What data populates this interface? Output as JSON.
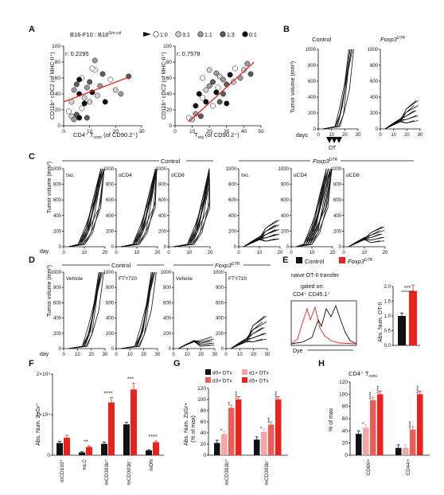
{
  "panel_letters": [
    "A",
    "B",
    "C",
    "D",
    "E",
    "F",
    "G",
    "H"
  ],
  "A": {
    "legend_prefix": "B16-F10 : B16",
    "legend_sup": "Gm-csf",
    "legend_items": [
      {
        "label": "1:0",
        "color": "#ffffff"
      },
      {
        "label": "3:1",
        "color": "#d0d0d0"
      },
      {
        "label": "1:1",
        "color": "#9a9a9a"
      },
      {
        "label": "1:3",
        "color": "#5c5c5c"
      },
      {
        "label": "0:1",
        "color": "#111111"
      }
    ],
    "ylabel": "CD11b⁺ cDC2 (of MHC-II⁺)",
    "plot1": {
      "r": "r: 0.2295",
      "xlabel": "CD4⁺ T",
      "xlabel_sub": "conv",
      "xlabel_tail": " (of CD90.2⁺)",
      "xticks": [
        "0",
        "10",
        "20",
        "30"
      ],
      "yticks": [
        "0",
        "20",
        "40",
        "60",
        "80",
        "100"
      ]
    },
    "plot2": {
      "r": "r: 0.7578",
      "xlabel": "T",
      "xlabel_sub": "reg",
      "xlabel_tail": " (of CD90.2⁺)",
      "xticks": [
        "0",
        "10",
        "20",
        "30",
        "40",
        "50"
      ],
      "yticks": [
        "0",
        "20",
        "40",
        "60",
        "80",
        "100"
      ]
    }
  },
  "B": {
    "control": "Control",
    "foxp3": "Foxp3",
    "foxp3_sup": "DTR",
    "ylabel": "Tumor volume (mm³)",
    "yticks": [
      "0",
      "200",
      "400",
      "600",
      "800",
      "1000"
    ],
    "xticks": [
      "0",
      "10",
      "20",
      "30"
    ],
    "days": "days",
    "dt": "DT"
  },
  "C": {
    "control": "Control",
    "foxp3": "Foxp3",
    "foxp3_sup": "DTR",
    "ylabel": "Tumor volume (mm³)",
    "yticks": [
      "0",
      "200",
      "400",
      "600",
      "800",
      "1000"
    ],
    "xticks": [
      "0",
      "10",
      "20"
    ],
    "day": "day",
    "sub": [
      "Iso.",
      "αCD4",
      "αCD8",
      "Iso.",
      "αCD4",
      "αCD8"
    ]
  },
  "D": {
    "control": "Control",
    "foxp3": "Foxp3",
    "foxp3_sup": "DTR",
    "ylabel": "Tumor volume (mm³)",
    "yticks": [
      "0",
      "200",
      "400",
      "600",
      "800",
      "1000"
    ],
    "xticks": [
      "0",
      "10",
      "20",
      "30"
    ],
    "day": "day",
    "sub": [
      "Vehicle",
      "FTY720",
      "Vehicle",
      "FTY720"
    ]
  },
  "E": {
    "legend": [
      {
        "label": "Control",
        "color": "#111111"
      },
      {
        "label": "Foxp3",
        "sup": "DTR",
        "color": "#e8231d"
      }
    ],
    "line1": "naive OT-II transfer",
    "line2": "gated on:",
    "line3": "CD4⁺ CD45.1⁺",
    "xlabel": "Dye",
    "ylabel": "Abs. Num. OT-II",
    "stars": "***",
    "yticks": [
      "0.0",
      "0.5",
      "1.0",
      "1.5",
      "2.0"
    ]
  },
  "F": {
    "ylabel": "Abs. Num. ZsGr⁺",
    "ytick_top": "2×10⁴",
    "ytick_mid": "1×10⁴",
    "ytick_zero": "0",
    "categories": [
      "mCD103⁺",
      "mLC",
      "mCD301b⁺",
      "mCD301b⁻",
      "mDN"
    ],
    "stars": [
      "",
      "**",
      "****",
      "***",
      "****"
    ]
  },
  "G": {
    "legend": [
      {
        "label": "d0+ DTx",
        "color": "#111111"
      },
      {
        "label": "d1+ DTx",
        "color": "#f4a6a6"
      },
      {
        "label": "d3+ DTx",
        "color": "#ee5b55"
      },
      {
        "label": "d5+ DTx",
        "color": "#e8231d"
      }
    ],
    "ylabel1": "Abs. Num. ZsGr+",
    "ylabel2": "(% of max)",
    "yticks": [
      "0",
      "20",
      "40",
      "60",
      "80",
      "100",
      "120"
    ],
    "categories": [
      "mCD301b⁺",
      "mCD301b⁻"
    ],
    "stars": [
      [
        "",
        "*",
        "**",
        "****"
      ],
      [
        "",
        "*",
        "***",
        "****"
      ]
    ]
  },
  "H": {
    "title": "CD4⁺ T",
    "title_sub": "conv",
    "ylabel": "% of max",
    "yticks": [
      "0",
      "20",
      "40",
      "60",
      "80",
      "100",
      "120"
    ],
    "categories": [
      "CD69+",
      "CD44+"
    ],
    "stars": [
      [
        "",
        "*",
        "****",
        "****"
      ],
      [
        "",
        "",
        "****",
        "****"
      ]
    ]
  },
  "chart_data": [
    {
      "panel": "A-left",
      "type": "scatter",
      "xlim": [
        0,
        30
      ],
      "ylim": [
        0,
        100
      ],
      "points": [
        [
          2,
          18
        ],
        [
          3,
          12
        ],
        [
          4,
          8
        ],
        [
          5,
          14
        ],
        [
          6,
          10
        ],
        [
          7,
          22
        ],
        [
          3,
          30
        ],
        [
          4,
          45
        ],
        [
          5,
          52
        ],
        [
          6,
          40
        ],
        [
          7,
          60
        ],
        [
          8,
          35
        ],
        [
          9,
          48
        ],
        [
          10,
          55
        ],
        [
          11,
          42
        ],
        [
          12,
          70
        ],
        [
          13,
          38
        ],
        [
          14,
          50
        ],
        [
          15,
          65
        ],
        [
          16,
          30
        ],
        [
          18,
          58
        ],
        [
          20,
          45
        ],
        [
          22,
          40
        ],
        [
          25,
          62
        ],
        [
          8,
          28
        ],
        [
          11,
          72
        ],
        [
          10,
          30
        ],
        [
          12,
          82
        ],
        [
          9,
          10
        ],
        [
          6,
          58
        ]
      ],
      "fit": [
        [
          0,
          30
        ],
        [
          25,
          61
        ]
      ]
    },
    {
      "panel": "A-right",
      "type": "scatter",
      "xlim": [
        0,
        50
      ],
      "ylim": [
        0,
        100
      ],
      "points": [
        [
          8,
          10
        ],
        [
          10,
          8
        ],
        [
          12,
          15
        ],
        [
          15,
          12
        ],
        [
          14,
          40
        ],
        [
          16,
          35
        ],
        [
          18,
          45
        ],
        [
          20,
          50
        ],
        [
          22,
          55
        ],
        [
          24,
          42
        ],
        [
          25,
          48
        ],
        [
          26,
          62
        ],
        [
          28,
          58
        ],
        [
          30,
          52
        ],
        [
          32,
          64
        ],
        [
          35,
          72
        ],
        [
          40,
          70
        ],
        [
          42,
          78
        ],
        [
          44,
          65
        ],
        [
          18,
          30
        ],
        [
          22,
          25
        ],
        [
          20,
          70
        ],
        [
          24,
          66
        ],
        [
          28,
          40
        ],
        [
          30,
          28
        ],
        [
          16,
          60
        ],
        [
          34,
          55
        ],
        [
          38,
          60
        ],
        [
          26,
          30
        ],
        [
          12,
          25
        ]
      ],
      "fit": [
        [
          8,
          5
        ],
        [
          46,
          80
        ]
      ]
    },
    {
      "panel": "E-bar",
      "type": "bar",
      "categories": [
        "Control",
        "Foxp3 DTR"
      ],
      "values": [
        1.0,
        1.85
      ],
      "errors": [
        0.1,
        0.2
      ],
      "ylim": [
        0,
        2.0
      ]
    },
    {
      "panel": "F",
      "type": "bar",
      "categories": [
        "mCD103⁺",
        "mLC",
        "mCD301b⁺",
        "mCD301b⁻",
        "mDN"
      ],
      "series": [
        {
          "name": "Control",
          "values": [
            3000,
            700,
            2800,
            7600,
            1200
          ],
          "errors": [
            400,
            150,
            400,
            500,
            150
          ]
        },
        {
          "name": "Foxp3 DTR",
          "values": [
            4300,
            2000,
            13000,
            16200,
            3200
          ],
          "errors": [
            600,
            300,
            1200,
            1500,
            300
          ]
        }
      ],
      "ylim": [
        0,
        20000
      ]
    },
    {
      "panel": "G",
      "type": "bar",
      "categories": [
        "mCD301b⁺",
        "mCD301b⁻"
      ],
      "series": [
        {
          "name": "d0+ DTx",
          "values": [
            22,
            28
          ]
        },
        {
          "name": "d1+ DTx",
          "values": [
            38,
            42
          ]
        },
        {
          "name": "d3+ DTx",
          "values": [
            85,
            55
          ]
        },
        {
          "name": "d5+ DTx",
          "values": [
            100,
            100
          ]
        }
      ],
      "ylim": [
        0,
        120
      ]
    },
    {
      "panel": "H",
      "type": "bar",
      "categories": [
        "CD69+",
        "CD44+"
      ],
      "series": [
        {
          "name": "d0+ DTx",
          "values": [
            35,
            12
          ]
        },
        {
          "name": "d1+ DTx",
          "values": [
            45,
            12
          ]
        },
        {
          "name": "d3+ DTx",
          "values": [
            90,
            42
          ]
        },
        {
          "name": "d5+ DTx",
          "values": [
            100,
            100
          ]
        }
      ],
      "ylim": [
        0,
        120
      ]
    }
  ]
}
